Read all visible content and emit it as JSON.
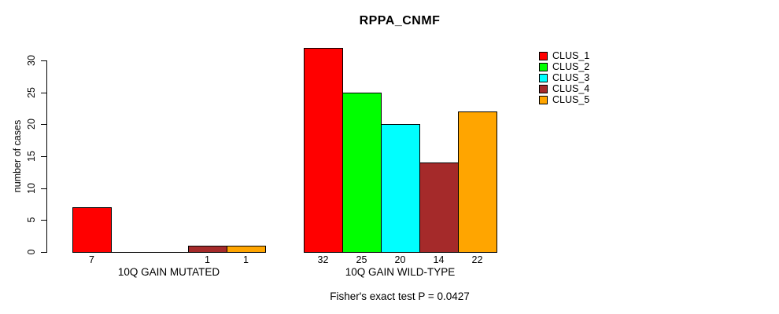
{
  "chart_data": {
    "type": "bar",
    "title": "RPPA_CNMF",
    "ylabel": "number of cases",
    "yticks": [
      0,
      5,
      10,
      15,
      20,
      25,
      30
    ],
    "ylim": [
      0,
      32
    ],
    "grid": false,
    "legend_position": "top-right",
    "categories": [
      "10Q GAIN MUTATED",
      "10Q GAIN WILD-TYPE"
    ],
    "series": [
      {
        "name": "CLUS_1",
        "color": "#FF0000",
        "values": [
          7,
          32
        ]
      },
      {
        "name": "CLUS_2",
        "color": "#00FF00",
        "values": [
          0,
          25
        ]
      },
      {
        "name": "CLUS_3",
        "color": "#00FFFF",
        "values": [
          0,
          20
        ]
      },
      {
        "name": "CLUS_4",
        "color": "#A52A2A",
        "values": [
          1,
          14
        ]
      },
      {
        "name": "CLUS_5",
        "color": "#FFA500",
        "values": [
          1,
          22
        ]
      }
    ],
    "bar_value_labels": {
      "10Q GAIN MUTATED": [
        7,
        null,
        null,
        1,
        1
      ],
      "10Q GAIN WILD-TYPE": [
        32,
        25,
        20,
        14,
        22
      ]
    },
    "footnote": "Fisher's exact test P = 0.0427"
  }
}
